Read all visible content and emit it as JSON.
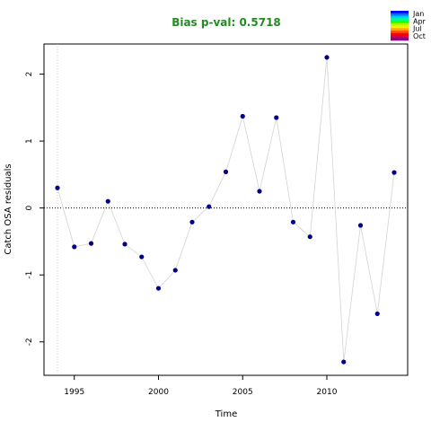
{
  "chart_data": {
    "type": "scatter",
    "title": "Bias p-val: 0.5718",
    "title_color": "#228b22",
    "xlabel": "Time",
    "ylabel": "Catch OSA residuals",
    "xlim": [
      1993.2,
      2014.8
    ],
    "ylim": [
      -2.5,
      2.45
    ],
    "xticks": [
      1995,
      2000,
      2005,
      2010
    ],
    "yticks": [
      -2,
      -1,
      0,
      1,
      2
    ],
    "reference_line_y": 0,
    "reference_line_x": 1994,
    "grid": false,
    "point_color": "#00008b",
    "line_color": "#d3d3d3",
    "series": [
      {
        "x": [
          1994,
          1995,
          1996,
          1997,
          1998,
          1999,
          2000,
          2001,
          2002,
          2003,
          2004,
          2005,
          2006,
          2007,
          2008,
          2009,
          2010,
          2011,
          2012,
          2013,
          2014
        ],
        "y": [
          0.3,
          -0.58,
          -0.53,
          0.1,
          -0.54,
          -0.73,
          -1.2,
          -0.93,
          -0.21,
          0.02,
          0.54,
          1.37,
          0.25,
          1.35,
          -0.21,
          -0.43,
          2.25,
          -2.3,
          -0.26,
          -1.58,
          0.53
        ]
      }
    ],
    "legend": {
      "position": "top-right",
      "labels": [
        "Jan",
        "Apr",
        "Jul",
        "Oct"
      ],
      "colors": [
        "#0000ff",
        "#0077ff",
        "#00ccff",
        "#00ff88",
        "#22ff00",
        "#aaff00",
        "#ffee00",
        "#ffaa00",
        "#ff5500",
        "#ff0000",
        "#cc0044",
        "#880088"
      ]
    }
  }
}
